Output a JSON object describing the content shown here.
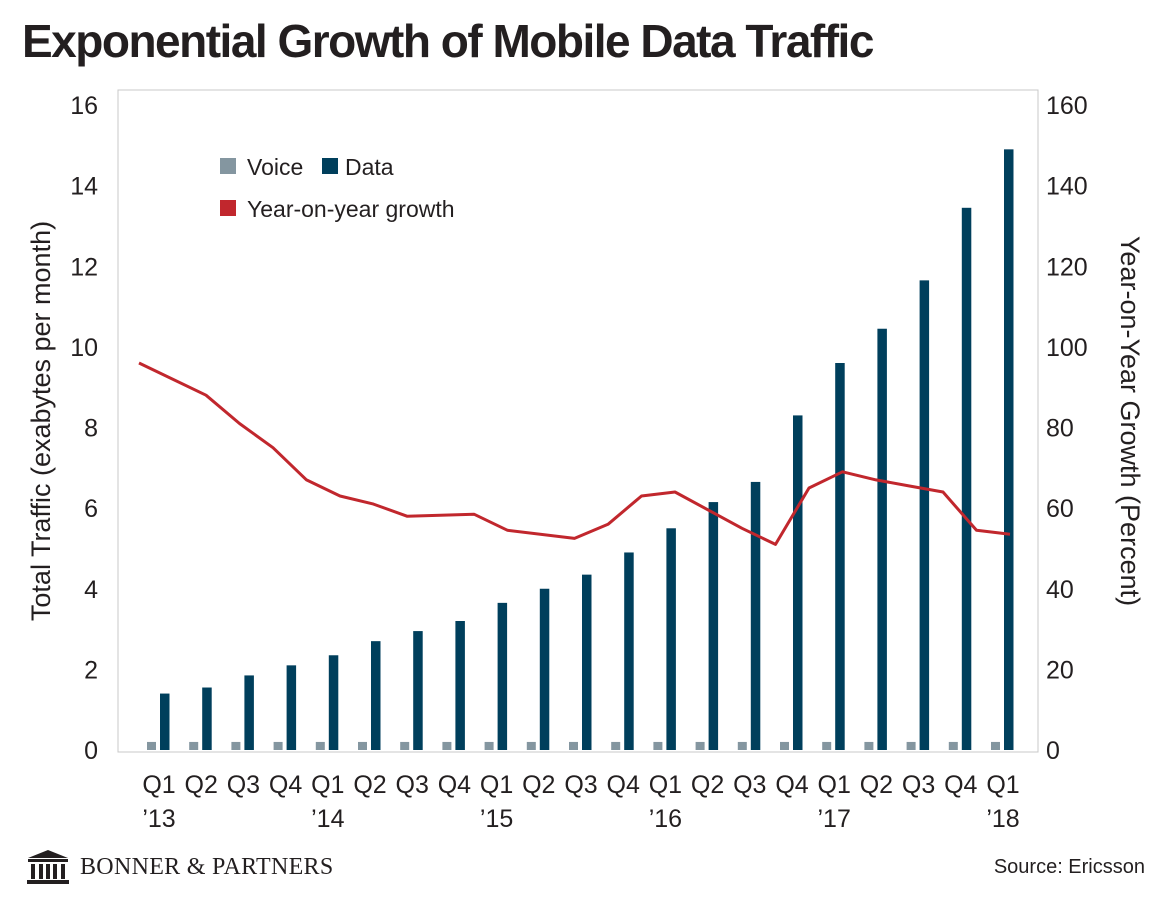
{
  "title": "Exponential Growth of Mobile Data Traffic",
  "source": "Source: Ericsson",
  "brand": {
    "name": "BONNER & PARTNERS",
    "logo_icon": "columned-building-icon"
  },
  "colors": {
    "voice": "#8496a0",
    "data": "#003f5c",
    "growth": "#c1272d",
    "text": "#231f20",
    "frame": "#c8c8c8"
  },
  "chart_data": {
    "type": "bar",
    "title": "Exponential Growth of Mobile Data Traffic",
    "x_ticks": [
      {
        "q": "Q1",
        "y": "’13"
      },
      {
        "q": "Q2",
        "y": ""
      },
      {
        "q": "Q3",
        "y": ""
      },
      {
        "q": "Q4",
        "y": ""
      },
      {
        "q": "Q1",
        "y": "’14"
      },
      {
        "q": "Q2",
        "y": ""
      },
      {
        "q": "Q3",
        "y": ""
      },
      {
        "q": "Q4",
        "y": ""
      },
      {
        "q": "Q1",
        "y": "’15"
      },
      {
        "q": "Q2",
        "y": ""
      },
      {
        "q": "Q3",
        "y": ""
      },
      {
        "q": "Q4",
        "y": ""
      },
      {
        "q": "Q1",
        "y": "’16"
      },
      {
        "q": "Q2",
        "y": ""
      },
      {
        "q": "Q3",
        "y": ""
      },
      {
        "q": "Q4",
        "y": ""
      },
      {
        "q": "Q1",
        "y": "’17"
      },
      {
        "q": "Q2",
        "y": ""
      },
      {
        "q": "Q3",
        "y": ""
      },
      {
        "q": "Q4",
        "y": ""
      },
      {
        "q": "Q1",
        "y": "’18"
      }
    ],
    "ylabel": "Total Traffic (exabytes per month)",
    "y2label": "Year-on-Year Growth (Percent)",
    "ylim": [
      0,
      16
    ],
    "yticks": [
      0,
      2,
      4,
      6,
      8,
      10,
      12,
      14,
      16
    ],
    "y2lim": [
      0,
      160
    ],
    "y2ticks": [
      0,
      20,
      40,
      60,
      80,
      100,
      120,
      140,
      160
    ],
    "grid": false,
    "legend_position": "top-left",
    "series": [
      {
        "name": "Voice",
        "type": "bar",
        "axis": "left",
        "color": "#8496a0",
        "values": [
          0.2,
          0.2,
          0.2,
          0.2,
          0.2,
          0.2,
          0.2,
          0.2,
          0.2,
          0.2,
          0.2,
          0.2,
          0.2,
          0.2,
          0.2,
          0.2,
          0.2,
          0.2,
          0.2,
          0.2,
          0.2
        ]
      },
      {
        "name": "Data",
        "type": "bar",
        "axis": "left",
        "color": "#003f5c",
        "values": [
          1.4,
          1.55,
          1.85,
          2.1,
          2.35,
          2.7,
          2.95,
          3.2,
          3.65,
          4.0,
          4.35,
          4.9,
          5.5,
          6.15,
          6.65,
          8.3,
          9.6,
          10.45,
          11.65,
          13.45,
          14.9
        ]
      },
      {
        "name": "Year-on-year growth",
        "type": "line",
        "axis": "right",
        "color": "#c1272d",
        "points": [
          [
            0,
            96
          ],
          [
            1,
            88
          ],
          [
            1.5,
            81
          ],
          [
            2,
            75
          ],
          [
            2.5,
            67
          ],
          [
            3,
            63
          ],
          [
            3.5,
            61
          ],
          [
            4,
            58
          ],
          [
            5,
            58.5
          ],
          [
            5.5,
            54.5
          ],
          [
            6.5,
            52.5
          ],
          [
            7,
            56
          ],
          [
            7.5,
            63
          ],
          [
            8,
            64
          ],
          [
            9,
            55
          ],
          [
            9.5,
            51
          ],
          [
            10,
            65
          ],
          [
            10.5,
            69
          ],
          [
            11,
            67
          ],
          [
            11.5,
            65.5
          ],
          [
            12,
            64
          ],
          [
            12.5,
            54.5
          ],
          [
            13,
            53.5
          ]
        ]
      }
    ]
  }
}
